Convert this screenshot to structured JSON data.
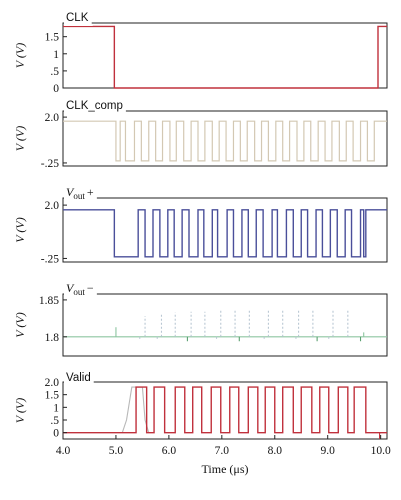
{
  "chart_data": [
    {
      "type": "line",
      "title": "CLK",
      "ylabel": "V (V)",
      "ylim": [
        0,
        1.9
      ],
      "yticks": [
        {
          "v": 1.5,
          "label": "1.5"
        },
        {
          "v": 1.0,
          "label": "1"
        },
        {
          "v": 0.5,
          "label": ".5"
        },
        {
          "v": 0,
          "label": "0"
        }
      ],
      "series": [
        {
          "color": "#c0313c",
          "width": 1.4,
          "points": [
            [
              4.0,
              1.8
            ],
            [
              4.97,
              1.8
            ],
            [
              4.97,
              0
            ],
            [
              9.95,
              0
            ],
            [
              9.95,
              1.8
            ],
            [
              10.12,
              1.8
            ]
          ]
        }
      ]
    },
    {
      "type": "line",
      "title": "CLK_comp",
      "ylabel": "V (V)",
      "ylim": [
        -0.4,
        2.3
      ],
      "yticks": [
        {
          "v": 2.0,
          "label": "2.0"
        },
        {
          "v": -0.25,
          "label": "-.25"
        }
      ],
      "series": [
        {
          "color": "#d3c8b3",
          "width": 1.2,
          "points": [
            [
              4.0,
              1.8
            ],
            [
              5.0,
              1.8
            ],
            [
              5.0,
              -0.15
            ],
            [
              5.08,
              -0.15
            ],
            [
              5.08,
              1.8
            ],
            [
              5.18,
              1.8
            ],
            [
              5.18,
              -0.15
            ],
            [
              5.35,
              -0.15
            ],
            [
              5.35,
              1.8
            ],
            [
              5.48,
              1.8
            ],
            [
              5.48,
              -0.15
            ],
            [
              5.62,
              -0.15
            ],
            [
              5.62,
              1.8
            ],
            [
              5.75,
              1.8
            ],
            [
              5.75,
              -0.15
            ],
            [
              5.88,
              -0.15
            ],
            [
              5.88,
              1.8
            ],
            [
              6.02,
              1.8
            ],
            [
              6.02,
              -0.15
            ],
            [
              6.14,
              -0.15
            ],
            [
              6.14,
              1.8
            ],
            [
              6.28,
              1.8
            ],
            [
              6.28,
              -0.15
            ],
            [
              6.42,
              -0.15
            ],
            [
              6.42,
              1.8
            ],
            [
              6.55,
              1.8
            ],
            [
              6.55,
              -0.15
            ],
            [
              6.68,
              -0.15
            ],
            [
              6.68,
              1.8
            ],
            [
              6.82,
              1.8
            ],
            [
              6.82,
              -0.15
            ],
            [
              6.95,
              -0.15
            ],
            [
              6.95,
              1.8
            ],
            [
              7.08,
              1.8
            ],
            [
              7.08,
              -0.15
            ],
            [
              7.22,
              -0.15
            ],
            [
              7.22,
              1.8
            ],
            [
              7.35,
              1.8
            ],
            [
              7.35,
              -0.15
            ],
            [
              7.48,
              -0.15
            ],
            [
              7.48,
              1.8
            ],
            [
              7.62,
              1.8
            ],
            [
              7.62,
              -0.15
            ],
            [
              7.75,
              -0.15
            ],
            [
              7.75,
              1.8
            ],
            [
              7.88,
              1.8
            ],
            [
              7.88,
              -0.15
            ],
            [
              8.02,
              -0.15
            ],
            [
              8.02,
              1.8
            ],
            [
              8.15,
              1.8
            ],
            [
              8.15,
              -0.15
            ],
            [
              8.28,
              -0.15
            ],
            [
              8.28,
              1.8
            ],
            [
              8.42,
              1.8
            ],
            [
              8.42,
              -0.15
            ],
            [
              8.55,
              -0.15
            ],
            [
              8.55,
              1.8
            ],
            [
              8.68,
              1.8
            ],
            [
              8.68,
              -0.15
            ],
            [
              8.82,
              -0.15
            ],
            [
              8.82,
              1.8
            ],
            [
              8.95,
              1.8
            ],
            [
              8.95,
              -0.15
            ],
            [
              9.08,
              -0.15
            ],
            [
              9.08,
              1.8
            ],
            [
              9.22,
              1.8
            ],
            [
              9.22,
              -0.15
            ],
            [
              9.35,
              -0.15
            ],
            [
              9.35,
              1.8
            ],
            [
              9.48,
              1.8
            ],
            [
              9.48,
              -0.15
            ],
            [
              9.62,
              -0.15
            ],
            [
              9.62,
              1.8
            ],
            [
              9.75,
              1.8
            ],
            [
              9.75,
              -0.15
            ],
            [
              9.88,
              -0.15
            ],
            [
              9.88,
              1.8
            ],
            [
              10.12,
              1.8
            ]
          ]
        }
      ]
    },
    {
      "type": "line",
      "title": "V_out+",
      "ylabel": "V (V)",
      "ylim": [
        -0.4,
        2.3
      ],
      "yticks": [
        {
          "v": 2.0,
          "label": "2.0"
        },
        {
          "v": -0.25,
          "label": "-.25"
        }
      ],
      "series": [
        {
          "color": "#4a4f9a",
          "width": 1.4,
          "points": [
            [
              4.0,
              1.8
            ],
            [
              4.97,
              1.8
            ],
            [
              4.97,
              -0.18
            ],
            [
              5.42,
              -0.18
            ],
            [
              5.42,
              1.8
            ],
            [
              5.55,
              1.8
            ],
            [
              5.55,
              -0.18
            ],
            [
              5.7,
              -0.18
            ],
            [
              5.7,
              1.8
            ],
            [
              5.83,
              1.8
            ],
            [
              5.83,
              -0.18
            ],
            [
              5.98,
              -0.18
            ],
            [
              5.98,
              1.8
            ],
            [
              6.1,
              1.8
            ],
            [
              6.1,
              -0.18
            ],
            [
              6.25,
              -0.18
            ],
            [
              6.25,
              1.8
            ],
            [
              6.38,
              1.8
            ],
            [
              6.38,
              -0.18
            ],
            [
              6.55,
              -0.18
            ],
            [
              6.55,
              1.8
            ],
            [
              6.66,
              1.8
            ],
            [
              6.66,
              -0.18
            ],
            [
              6.82,
              -0.18
            ],
            [
              6.82,
              1.8
            ],
            [
              6.92,
              1.8
            ],
            [
              6.92,
              -0.18
            ],
            [
              7.1,
              -0.18
            ],
            [
              7.1,
              1.8
            ],
            [
              7.22,
              1.8
            ],
            [
              7.22,
              -0.18
            ],
            [
              7.38,
              -0.18
            ],
            [
              7.38,
              1.8
            ],
            [
              7.5,
              1.8
            ],
            [
              7.5,
              -0.18
            ],
            [
              7.65,
              -0.18
            ],
            [
              7.65,
              1.8
            ],
            [
              7.78,
              1.8
            ],
            [
              7.78,
              -0.18
            ],
            [
              7.95,
              -0.18
            ],
            [
              7.95,
              1.8
            ],
            [
              8.05,
              1.8
            ],
            [
              8.05,
              -0.18
            ],
            [
              8.22,
              -0.18
            ],
            [
              8.22,
              1.8
            ],
            [
              8.35,
              1.8
            ],
            [
              8.35,
              -0.18
            ],
            [
              8.5,
              -0.18
            ],
            [
              8.5,
              1.8
            ],
            [
              8.62,
              1.8
            ],
            [
              8.62,
              -0.18
            ],
            [
              8.78,
              -0.18
            ],
            [
              8.78,
              1.8
            ],
            [
              8.9,
              1.8
            ],
            [
              8.9,
              -0.18
            ],
            [
              9.05,
              -0.18
            ],
            [
              9.05,
              1.8
            ],
            [
              9.18,
              1.8
            ],
            [
              9.18,
              -0.18
            ],
            [
              9.33,
              -0.18
            ],
            [
              9.33,
              1.8
            ],
            [
              9.45,
              1.8
            ],
            [
              9.45,
              -0.18
            ],
            [
              9.62,
              -0.18
            ],
            [
              9.62,
              1.8
            ],
            [
              9.68,
              1.8
            ],
            [
              9.68,
              -0.18
            ],
            [
              9.72,
              -0.18
            ],
            [
              9.72,
              1.8
            ],
            [
              10.12,
              1.8
            ]
          ]
        }
      ]
    },
    {
      "type": "line",
      "title": "V_out−",
      "ylabel": "V (V)",
      "ylim": [
        1.774,
        1.858
      ],
      "yticks": [
        {
          "v": 1.85,
          "label": "1.85"
        },
        {
          "v": 1.8,
          "label": "1.8"
        }
      ],
      "baseline": 1.8,
      "series": [
        {
          "color": "#8dc5a0",
          "width": 1.1,
          "points": [
            [
              4.0,
              1.8
            ],
            [
              10.12,
              1.8
            ]
          ]
        }
      ],
      "spikes": [
        {
          "x": 5.0,
          "y": 1.813,
          "color": "#8dc5a0"
        },
        {
          "x": 5.45,
          "y": 1.795,
          "color": "#b9c7d3"
        },
        {
          "x": 5.55,
          "y": 1.828,
          "color": "#b9c7d3"
        },
        {
          "x": 5.78,
          "y": 1.795,
          "color": "#b9c7d3"
        },
        {
          "x": 5.86,
          "y": 1.83,
          "color": "#b9c7d3"
        },
        {
          "x": 6.12,
          "y": 1.833,
          "color": "#b9c7d3"
        },
        {
          "x": 6.35,
          "y": 1.794,
          "color": "#5aa070"
        },
        {
          "x": 6.42,
          "y": 1.834,
          "color": "#b9c7d3"
        },
        {
          "x": 6.68,
          "y": 1.834,
          "color": "#b9c7d3"
        },
        {
          "x": 6.9,
          "y": 1.797,
          "color": "#b9c7d3"
        },
        {
          "x": 6.98,
          "y": 1.836,
          "color": "#b9c7d3"
        },
        {
          "x": 7.25,
          "y": 1.836,
          "color": "#b9c7d3"
        },
        {
          "x": 7.33,
          "y": 1.794,
          "color": "#5aa070"
        },
        {
          "x": 7.52,
          "y": 1.838,
          "color": "#b9c7d3"
        },
        {
          "x": 7.8,
          "y": 1.797,
          "color": "#b9c7d3"
        },
        {
          "x": 7.88,
          "y": 1.838,
          "color": "#b9c7d3"
        },
        {
          "x": 8.15,
          "y": 1.838,
          "color": "#b9c7d3"
        },
        {
          "x": 8.4,
          "y": 1.797,
          "color": "#b9c7d3"
        },
        {
          "x": 8.45,
          "y": 1.838,
          "color": "#b9c7d3"
        },
        {
          "x": 8.72,
          "y": 1.838,
          "color": "#b9c7d3"
        },
        {
          "x": 8.8,
          "y": 1.794,
          "color": "#5aa070"
        },
        {
          "x": 9.02,
          "y": 1.797,
          "color": "#b9c7d3"
        },
        {
          "x": 9.1,
          "y": 1.838,
          "color": "#b9c7d3"
        },
        {
          "x": 9.38,
          "y": 1.838,
          "color": "#b9c7d3"
        },
        {
          "x": 9.62,
          "y": 1.794,
          "color": "#5aa070"
        },
        {
          "x": 9.68,
          "y": 1.806,
          "color": "#8dc5a0"
        }
      ]
    },
    {
      "type": "line",
      "title": "Valid",
      "ylabel": "V (V)",
      "ylim": [
        -0.25,
        2.0
      ],
      "yticks": [
        {
          "v": 2.0,
          "label": "2.0"
        },
        {
          "v": 1.5,
          "label": "1.5"
        },
        {
          "v": 1.0,
          "label": "1"
        },
        {
          "v": 0.5,
          "label": ".5"
        },
        {
          "v": 0,
          "label": "0"
        }
      ],
      "series": [
        {
          "color": "#b8b8b8",
          "width": 1.1,
          "points": [
            [
              5.12,
              0
            ],
            [
              5.2,
              0.5
            ],
            [
              5.3,
              1.8
            ],
            [
              5.5,
              1.8
            ],
            [
              5.55,
              0.5
            ],
            [
              5.62,
              0
            ]
          ]
        },
        {
          "color": "#c0313c",
          "width": 1.4,
          "points": [
            [
              4.0,
              0
            ],
            [
              5.38,
              0
            ],
            [
              5.38,
              1.8
            ],
            [
              5.58,
              1.8
            ],
            [
              5.58,
              0
            ],
            [
              5.72,
              0
            ],
            [
              5.72,
              1.8
            ],
            [
              5.92,
              1.8
            ],
            [
              5.92,
              0
            ],
            [
              6.12,
              0
            ],
            [
              6.12,
              1.8
            ],
            [
              6.3,
              1.8
            ],
            [
              6.3,
              0
            ],
            [
              6.45,
              0
            ],
            [
              6.45,
              1.8
            ],
            [
              6.62,
              1.8
            ],
            [
              6.62,
              0
            ],
            [
              6.8,
              0
            ],
            [
              6.8,
              1.8
            ],
            [
              6.98,
              1.8
            ],
            [
              6.98,
              0
            ],
            [
              7.15,
              0
            ],
            [
              7.15,
              1.8
            ],
            [
              7.32,
              1.8
            ],
            [
              7.32,
              0
            ],
            [
              7.5,
              0
            ],
            [
              7.5,
              1.8
            ],
            [
              7.68,
              1.8
            ],
            [
              7.68,
              0
            ],
            [
              7.82,
              0
            ],
            [
              7.82,
              1.8
            ],
            [
              8.0,
              1.8
            ],
            [
              8.0,
              0
            ],
            [
              8.15,
              0
            ],
            [
              8.15,
              1.8
            ],
            [
              8.35,
              1.8
            ],
            [
              8.35,
              0
            ],
            [
              8.5,
              0
            ],
            [
              8.5,
              1.8
            ],
            [
              8.7,
              1.8
            ],
            [
              8.7,
              0
            ],
            [
              8.85,
              0
            ],
            [
              8.85,
              1.8
            ],
            [
              9.02,
              1.8
            ],
            [
              9.02,
              0
            ],
            [
              9.2,
              0
            ],
            [
              9.2,
              1.8
            ],
            [
              9.38,
              1.8
            ],
            [
              9.38,
              0
            ],
            [
              9.5,
              0
            ],
            [
              9.5,
              1.8
            ],
            [
              9.72,
              1.8
            ],
            [
              9.72,
              0
            ],
            [
              10.12,
              0
            ]
          ]
        }
      ],
      "spikes": [
        {
          "x": 9.98,
          "y": -0.25,
          "color": "#c0313c"
        }
      ]
    }
  ],
  "shared_x": {
    "xlim": [
      4.0,
      10.12
    ],
    "ticks": [
      4.0,
      5.0,
      6.0,
      7.0,
      8.0,
      9.0,
      10.0
    ],
    "tick_labels": [
      "4.0",
      "5.0",
      "6.0",
      "7.0",
      "8.0",
      "9.0",
      "10.0"
    ],
    "xlabel": "Time (μs)"
  }
}
